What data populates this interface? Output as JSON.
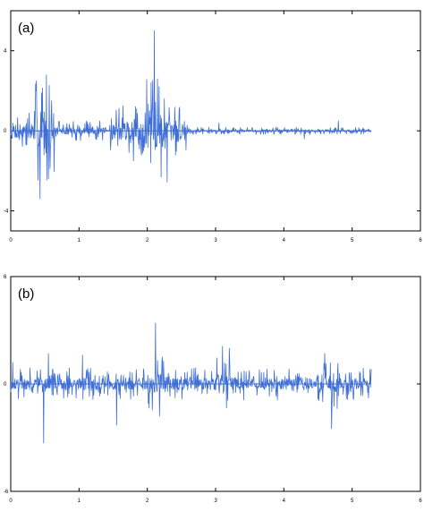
{
  "chart_data": [
    {
      "type": "line",
      "panel_label": "(a)",
      "xlim": [
        0,
        6
      ],
      "ylim": [
        -5,
        6
      ],
      "x_ticks": [
        "0",
        "1",
        "2",
        "3",
        "4",
        "5",
        "6"
      ],
      "y_ticks": [
        {
          "value": 4,
          "label": "4"
        },
        {
          "value": 0,
          "label": "0"
        },
        {
          "value": -4,
          "label": "-4"
        }
      ],
      "signal_end_x": 5.28,
      "series": [
        {
          "color": "#3f6fd6",
          "bursts": [
            {
              "x": [
                0.0,
                0.55
              ],
              "amplitude": 1.2
            },
            {
              "x": [
                0.35,
                0.65
              ],
              "amplitude": 2.6
            },
            {
              "x": [
                0.65,
                1.4
              ],
              "amplitude": 0.5
            },
            {
              "x": [
                1.45,
                2.6
              ],
              "amplitude": 1.3
            },
            {
              "x": [
                1.95,
                2.3
              ],
              "amplitude": 2.6
            },
            {
              "x": [
                2.6,
                5.28
              ],
              "amplitude": 0.18
            }
          ],
          "spikes": [
            {
              "x": 0.43,
              "y": -3.4
            },
            {
              "x": 0.45,
              "y": 1.9
            },
            {
              "x": 0.52,
              "y": 2.8
            },
            {
              "x": 0.55,
              "y": -2.4
            },
            {
              "x": 0.6,
              "y": 1.5
            },
            {
              "x": 1.8,
              "y": -1.5
            },
            {
              "x": 2.05,
              "y": -1.6
            },
            {
              "x": 2.1,
              "y": 5.0
            },
            {
              "x": 2.15,
              "y": 2.6
            },
            {
              "x": 2.2,
              "y": -2.3
            },
            {
              "x": 2.25,
              "y": 1.6
            },
            {
              "x": 3.05,
              "y": 0.4
            },
            {
              "x": 4.3,
              "y": -0.4
            },
            {
              "x": 4.8,
              "y": 0.5
            }
          ]
        }
      ]
    },
    {
      "type": "line",
      "panel_label": "(b)",
      "xlim": [
        0,
        6
      ],
      "ylim": [
        -6,
        6
      ],
      "x_ticks": [
        "0",
        "1",
        "2",
        "3",
        "4",
        "5",
        "6"
      ],
      "y_ticks": [
        {
          "value": 6,
          "label": "6"
        },
        {
          "value": 0,
          "label": "0"
        },
        {
          "value": -6,
          "label": "-6"
        }
      ],
      "signal_end_x": 5.28,
      "series": [
        {
          "color": "#3f6fd6",
          "bursts": [
            {
              "x": [
                0.0,
                5.28
              ],
              "amplitude": 0.9
            },
            {
              "x": [
                2.0,
                2.3
              ],
              "amplitude": 1.8
            },
            {
              "x": [
                3.0,
                3.3
              ],
              "amplitude": 1.5
            },
            {
              "x": [
                4.5,
                4.8
              ],
              "amplitude": 1.4
            }
          ],
          "spikes": [
            {
              "x": 0.03,
              "y": 1.2
            },
            {
              "x": 0.48,
              "y": -3.3
            },
            {
              "x": 0.55,
              "y": 1.7
            },
            {
              "x": 1.05,
              "y": 1.6
            },
            {
              "x": 1.55,
              "y": -2.3
            },
            {
              "x": 2.12,
              "y": 3.4
            },
            {
              "x": 2.18,
              "y": -1.8
            },
            {
              "x": 2.22,
              "y": 1.5
            },
            {
              "x": 3.1,
              "y": 2.1
            },
            {
              "x": 3.2,
              "y": 2.0
            },
            {
              "x": 4.6,
              "y": 1.7
            },
            {
              "x": 4.7,
              "y": -2.5
            }
          ]
        }
      ]
    }
  ]
}
